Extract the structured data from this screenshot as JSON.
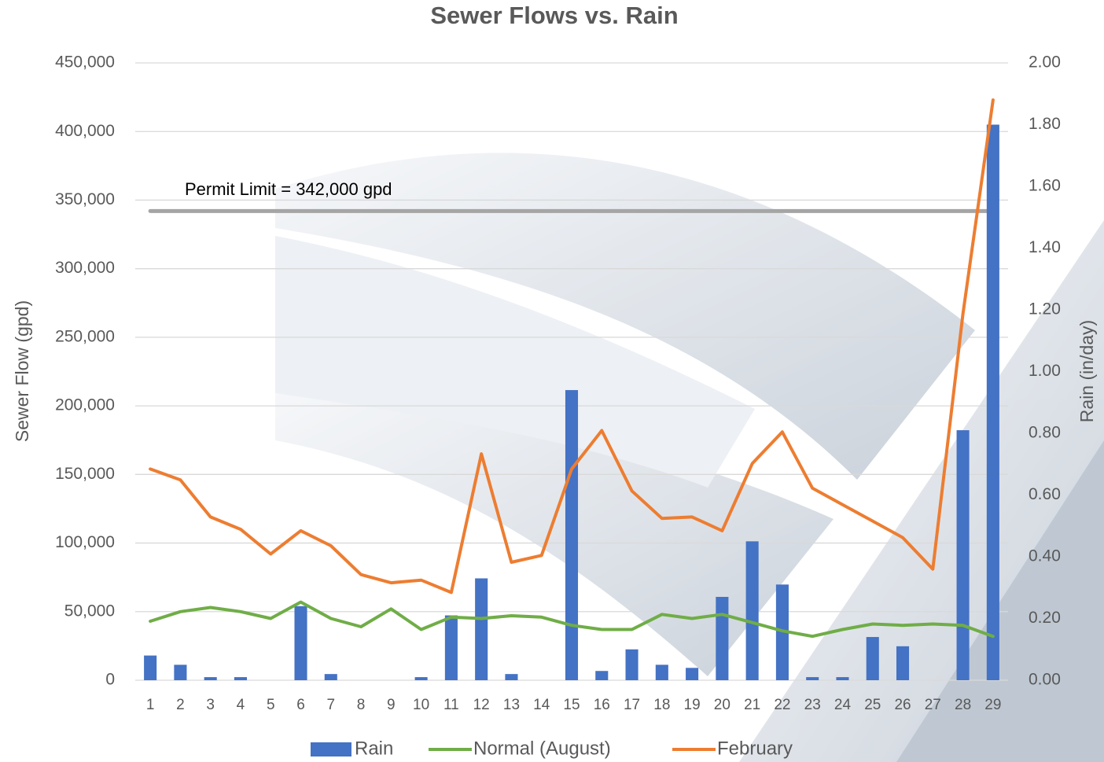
{
  "chart_data": {
    "type": "bar-line",
    "title": "Sewer Flows vs. Rain",
    "y_label": "Sewer Flow (gpd)",
    "y2_label": "Rain (in/day)",
    "categories": [
      "1",
      "2",
      "3",
      "4",
      "5",
      "6",
      "7",
      "8",
      "9",
      "10",
      "11",
      "12",
      "13",
      "14",
      "15",
      "16",
      "17",
      "18",
      "19",
      "20",
      "21",
      "22",
      "23",
      "24",
      "25",
      "26",
      "27",
      "28",
      "29"
    ],
    "series": [
      {
        "name": "Rain",
        "type": "bar",
        "axis": "y2",
        "color": "#4472c4",
        "values": [
          0.08,
          0.05,
          0.01,
          0.01,
          0,
          0.24,
          0.02,
          0,
          0,
          0.01,
          0.21,
          0.33,
          0.02,
          0,
          0.94,
          0.03,
          0.1,
          0.05,
          0.04,
          0.27,
          0.45,
          0.31,
          0.01,
          0.01,
          0.14,
          0.11,
          0,
          0.81,
          1.8
        ]
      },
      {
        "name": "Normal (August)",
        "type": "line",
        "color": "#70ad47",
        "values": [
          43000,
          50000,
          53000,
          50000,
          45000,
          57000,
          45000,
          39000,
          52000,
          37000,
          46000,
          45000,
          47000,
          46000,
          40000,
          37000,
          37000,
          48000,
          45000,
          48000,
          42000,
          36000,
          32000,
          37000,
          41000,
          40000,
          41000,
          40000,
          32000
        ]
      },
      {
        "name": "February",
        "type": "line",
        "color": "#ed7d31",
        "values": [
          154000,
          146000,
          119000,
          110000,
          92000,
          109000,
          98000,
          77000,
          71000,
          73000,
          64000,
          165000,
          86000,
          91000,
          154000,
          182000,
          138000,
          118000,
          119000,
          109000,
          158000,
          181000,
          140000,
          128000,
          116000,
          104000,
          81000,
          267000,
          423000
        ]
      }
    ],
    "reference_line": {
      "value": 342000,
      "label": "Permit Limit = 342,000 gpd",
      "color": "#a5a5a5"
    },
    "ylim": [
      0,
      450000
    ],
    "yticks": [
      0,
      {
        "value": 50000,
        "label": "50,000"
      },
      {
        "value": 100000,
        "label": "100,000"
      },
      {
        "value": 150000,
        "label": "150,000"
      },
      {
        "value": 200000,
        "label": "200,000"
      },
      {
        "value": 250000,
        "label": "250,000"
      },
      {
        "value": 300000,
        "label": "300,000"
      },
      {
        "value": 350000,
        "label": "350,000"
      },
      {
        "value": 400000,
        "label": "400,000"
      },
      {
        "value": 450000,
        "label": "450,000"
      }
    ],
    "y2lim": [
      0,
      2
    ],
    "y2ticks": [
      {
        "value": 0,
        "label": "0.00"
      },
      {
        "value": 0.2,
        "label": "0.20"
      },
      {
        "value": 0.4,
        "label": "0.40"
      },
      {
        "value": 0.6,
        "label": "0.60"
      },
      {
        "value": 0.8,
        "label": "0.80"
      },
      {
        "value": 1,
        "label": "1.00"
      },
      {
        "value": 1.2,
        "label": "1.20"
      },
      {
        "value": 1.4,
        "label": "1.40"
      },
      {
        "value": 1.6,
        "label": "1.60"
      },
      {
        "value": 1.8,
        "label": "1.80"
      },
      {
        "value": 2,
        "label": "2.00"
      }
    ],
    "grid": true,
    "legend": "bottom"
  }
}
